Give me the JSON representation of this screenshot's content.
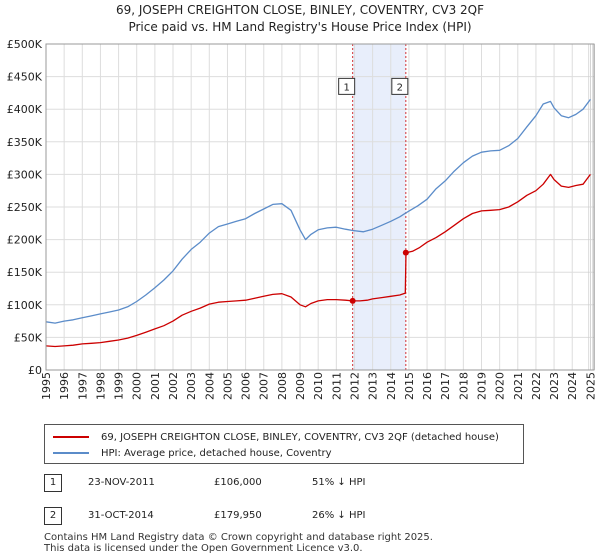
{
  "chart_data": {
    "type": "line",
    "title": "69, JOSEPH CREIGHTON CLOSE, BINLEY, COVENTRY, CV3 2QF",
    "subtitle": "Price paid vs. HM Land Registry's House Price Index (HPI)",
    "xlim": [
      1995,
      2025.2
    ],
    "ylim": [
      0,
      500000
    ],
    "x_ticks": [
      1995,
      1996,
      1997,
      1998,
      1999,
      2000,
      2001,
      2002,
      2003,
      2004,
      2005,
      2006,
      2007,
      2008,
      2009,
      2010,
      2011,
      2012,
      2013,
      2014,
      2015,
      2016,
      2017,
      2018,
      2019,
      2020,
      2021,
      2022,
      2023,
      2024,
      2025
    ],
    "y_ticks": [
      0,
      50000,
      100000,
      150000,
      200000,
      250000,
      300000,
      350000,
      400000,
      450000,
      500000
    ],
    "y_tick_labels": [
      "£0",
      "£50K",
      "£100K",
      "£150K",
      "£200K",
      "£250K",
      "£300K",
      "£350K",
      "£400K",
      "£450K",
      "£500K"
    ],
    "grid": true,
    "shaded_region": [
      2011.9,
      2014.83
    ],
    "series": [
      {
        "name": "69, JOSEPH CREIGHTON CLOSE, BINLEY, COVENTRY, CV3 2QF (detached house)",
        "color": "#cc0000",
        "x": [
          1995.0,
          1995.5,
          1996.0,
          1996.5,
          1997.0,
          1997.5,
          1998.0,
          1998.5,
          1999.0,
          1999.5,
          2000.0,
          2000.5,
          2001.0,
          2001.5,
          2002.0,
          2002.5,
          2003.0,
          2003.5,
          2004.0,
          2004.5,
          2005.0,
          2005.5,
          2006.0,
          2006.5,
          2007.0,
          2007.5,
          2008.0,
          2008.5,
          2009.0,
          2009.3,
          2009.6,
          2010.0,
          2010.5,
          2011.0,
          2011.5,
          2011.9,
          2012.3,
          2012.7,
          2013.0,
          2013.5,
          2014.0,
          2014.5,
          2014.8,
          2014.84,
          2015.2,
          2015.6,
          2016.0,
          2016.5,
          2017.0,
          2017.5,
          2018.0,
          2018.5,
          2019.0,
          2019.5,
          2020.0,
          2020.5,
          2021.0,
          2021.5,
          2022.0,
          2022.4,
          2022.8,
          2023.0,
          2023.4,
          2023.8,
          2024.2,
          2024.6,
          2025.0
        ],
        "values": [
          37000,
          36000,
          37000,
          38000,
          40000,
          41000,
          42000,
          44000,
          46000,
          49000,
          53000,
          58000,
          63000,
          68000,
          75000,
          84000,
          90000,
          95000,
          101000,
          104000,
          105000,
          106000,
          107000,
          110000,
          113000,
          116000,
          117000,
          112000,
          100000,
          97000,
          102000,
          106000,
          108000,
          108000,
          107000,
          106000,
          106000,
          107000,
          109000,
          111000,
          113000,
          115000,
          118000,
          179950,
          182000,
          188000,
          196000,
          203000,
          212000,
          222000,
          232000,
          240000,
          244000,
          245000,
          246000,
          250000,
          258000,
          268000,
          275000,
          285000,
          300000,
          292000,
          282000,
          280000,
          283000,
          285000,
          300000
        ]
      },
      {
        "name": "HPI: Average price, detached house, Coventry",
        "color": "#5b8cc9",
        "x": [
          1995.0,
          1995.5,
          1996.0,
          1996.5,
          1997.0,
          1997.5,
          1998.0,
          1998.5,
          1999.0,
          1999.5,
          2000.0,
          2000.5,
          2001.0,
          2001.5,
          2002.0,
          2002.5,
          2003.0,
          2003.5,
          2004.0,
          2004.5,
          2005.0,
          2005.5,
          2006.0,
          2006.5,
          2007.0,
          2007.5,
          2008.0,
          2008.5,
          2009.0,
          2009.3,
          2009.6,
          2010.0,
          2010.5,
          2011.0,
          2011.5,
          2011.9,
          2012.5,
          2013.0,
          2013.5,
          2014.0,
          2014.5,
          2014.83,
          2015.5,
          2016.0,
          2016.5,
          2017.0,
          2017.5,
          2018.0,
          2018.5,
          2019.0,
          2019.5,
          2020.0,
          2020.5,
          2021.0,
          2021.5,
          2022.0,
          2022.4,
          2022.8,
          2023.0,
          2023.4,
          2023.8,
          2024.2,
          2024.6,
          2025.0
        ],
        "values": [
          74000,
          72000,
          75000,
          77000,
          80000,
          83000,
          86000,
          89000,
          92000,
          97000,
          105000,
          115000,
          126000,
          138000,
          152000,
          170000,
          185000,
          196000,
          210000,
          220000,
          224000,
          228000,
          232000,
          240000,
          247000,
          254000,
          255000,
          245000,
          215000,
          200000,
          208000,
          215000,
          218000,
          219000,
          216000,
          214000,
          212000,
          216000,
          222000,
          228000,
          235000,
          241000,
          252000,
          262000,
          278000,
          290000,
          305000,
          318000,
          328000,
          334000,
          336000,
          337000,
          344000,
          355000,
          373000,
          390000,
          408000,
          412000,
          402000,
          390000,
          387000,
          392000,
          400000,
          415000
        ]
      }
    ],
    "markers": [
      {
        "label": "1",
        "x": 2011.9,
        "value": 106000,
        "box_value": 435000
      },
      {
        "label": "2",
        "x": 2014.83,
        "value": 179950,
        "box_value": 435000
      }
    ]
  },
  "legend": {
    "property_label": "69, JOSEPH CREIGHTON CLOSE, BINLEY, COVENTRY, CV3 2QF (detached house)",
    "hpi_label": "HPI: Average price, detached house, Coventry"
  },
  "transactions": [
    {
      "num": "1",
      "date": "23-NOV-2011",
      "price": "£106,000",
      "hpi": "51% ↓ HPI"
    },
    {
      "num": "2",
      "date": "31-OCT-2014",
      "price": "£179,950",
      "hpi": "26% ↓ HPI"
    }
  ],
  "footer": {
    "line1": "Contains HM Land Registry data © Crown copyright and database right 2025.",
    "line2": "This data is licensed under the Open Government Licence v3.0."
  },
  "colors": {
    "property": "#cc0000",
    "hpi": "#5b8cc9",
    "shade": "#e8eefb",
    "grid": "#dddddd"
  }
}
